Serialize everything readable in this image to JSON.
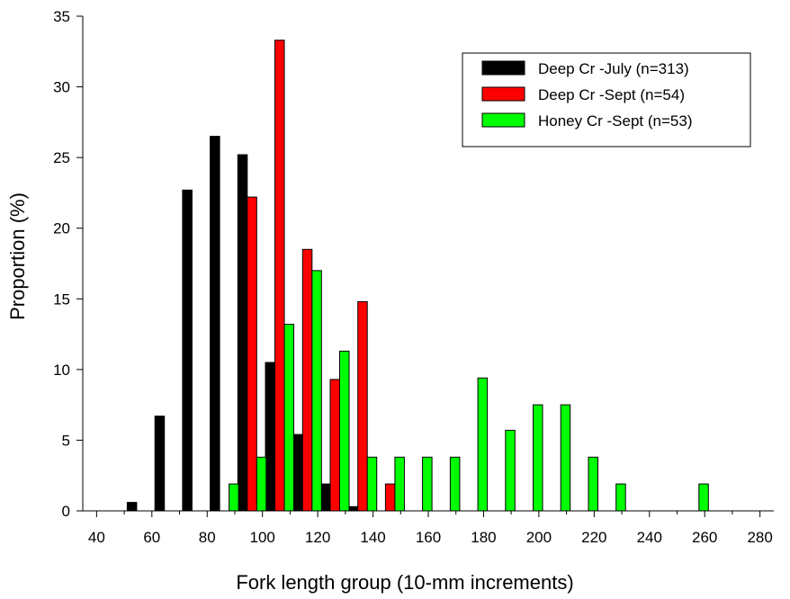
{
  "chart_data": {
    "type": "bar",
    "title": "",
    "xlabel": "Fork length group (10-mm increments)",
    "ylabel": "Proportion (%)",
    "xlim": [
      35,
      285
    ],
    "ylim": [
      0,
      35
    ],
    "x_ticks": [
      40,
      60,
      80,
      100,
      120,
      140,
      160,
      180,
      200,
      220,
      240,
      260,
      280
    ],
    "y_ticks": [
      0,
      5,
      10,
      15,
      20,
      25,
      30,
      35
    ],
    "bin_width": 10,
    "grid": false,
    "legend_position": "top-right",
    "series": [
      {
        "name": "Deep Cr -July (n=313)",
        "color": "#000000",
        "points": [
          {
            "x": 50,
            "y": 0
          },
          {
            "x": 60,
            "y": 0.6
          },
          {
            "x": 70,
            "y": 6.7
          },
          {
            "x": 80,
            "y": 22.7
          },
          {
            "x": 90,
            "y": 26.5
          },
          {
            "x": 100,
            "y": 25.2
          },
          {
            "x": 110,
            "y": 10.5
          },
          {
            "x": 120,
            "y": 5.4
          },
          {
            "x": 130,
            "y": 1.9
          },
          {
            "x": 140,
            "y": 0.3
          }
        ]
      },
      {
        "name": "Deep Cr -Sept (n=54)",
        "color": "#ff0000",
        "points": [
          {
            "x": 100,
            "y": 22.2
          },
          {
            "x": 110,
            "y": 33.3
          },
          {
            "x": 120,
            "y": 18.5
          },
          {
            "x": 130,
            "y": 9.3
          },
          {
            "x": 140,
            "y": 14.8
          },
          {
            "x": 150,
            "y": 1.9
          }
        ]
      },
      {
        "name": "Honey Cr -Sept (n=53)",
        "color": "#00ff00",
        "points": [
          {
            "x": 90,
            "y": 1.9
          },
          {
            "x": 100,
            "y": 3.8
          },
          {
            "x": 110,
            "y": 13.2
          },
          {
            "x": 120,
            "y": 17.0
          },
          {
            "x": 130,
            "y": 11.3
          },
          {
            "x": 140,
            "y": 3.8
          },
          {
            "x": 150,
            "y": 3.8
          },
          {
            "x": 160,
            "y": 3.8
          },
          {
            "x": 170,
            "y": 3.8
          },
          {
            "x": 180,
            "y": 9.4
          },
          {
            "x": 190,
            "y": 5.7
          },
          {
            "x": 200,
            "y": 7.5
          },
          {
            "x": 210,
            "y": 7.5
          },
          {
            "x": 220,
            "y": 3.8
          },
          {
            "x": 230,
            "y": 1.9
          },
          {
            "x": 260,
            "y": 1.9
          }
        ]
      }
    ]
  }
}
